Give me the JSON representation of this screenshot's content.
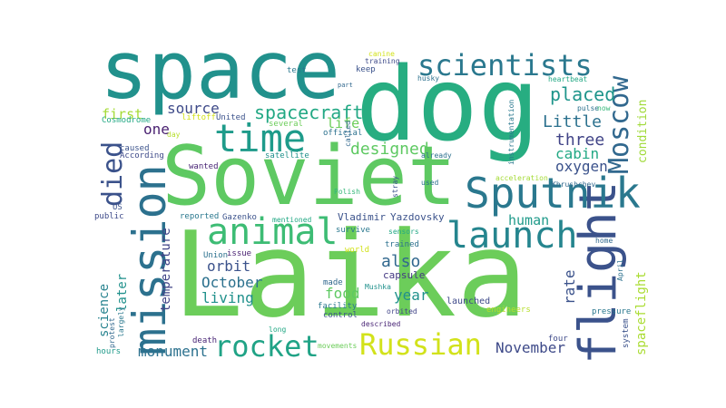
{
  "word_cloud": {
    "palette": {
      "dark_purple": "#440154",
      "indigo": "#3b528b",
      "slate_blue": "#31688e",
      "teal": "#21908d",
      "green": "#35b779",
      "lime": "#5ec962",
      "yellow_green": "#90d743",
      "yellow": "#cddc39"
    },
    "words": [
      {
        "id": "laika",
        "text": "Laika",
        "color": "#6ccd5a"
      },
      {
        "id": "dog",
        "text": "dog",
        "color": "#27ad81"
      },
      {
        "id": "soviet",
        "text": "Soviet",
        "color": "#5ec962"
      },
      {
        "id": "space",
        "text": "space",
        "color": "#21918c"
      },
      {
        "id": "mission",
        "text": "mission",
        "color": "#2c718e"
      },
      {
        "id": "flight",
        "text": "flight",
        "color": "#3b528b"
      },
      {
        "id": "sputnik",
        "text": "Sputnik",
        "color": "#2a788e"
      },
      {
        "id": "launch",
        "text": "launch",
        "color": "#25858e"
      },
      {
        "id": "animal",
        "text": "animal",
        "color": "#3dbc74"
      },
      {
        "id": "time",
        "text": "time",
        "color": "#1e9b8a"
      },
      {
        "id": "scientists",
        "text": "scientists",
        "color": "#2a788e"
      },
      {
        "id": "russian",
        "text": "Russian",
        "color": "#d2e21b"
      },
      {
        "id": "rocket",
        "text": "rocket",
        "color": "#20a386"
      },
      {
        "id": "moscow",
        "text": "Moscow",
        "color": "#31688e"
      },
      {
        "id": "died",
        "text": "died",
        "color": "#3b528b"
      },
      {
        "id": "spacecraft",
        "text": "spacecraft",
        "color": "#22a884"
      },
      {
        "id": "placed",
        "text": "placed",
        "color": "#1f958b"
      },
      {
        "id": "designed",
        "text": "designed",
        "color": "#5ec962"
      },
      {
        "id": "little",
        "text": "Little",
        "color": "#2c718e"
      },
      {
        "id": "three",
        "text": "three",
        "color": "#414487"
      },
      {
        "id": "cabin",
        "text": "cabin",
        "color": "#22a884"
      },
      {
        "id": "oxygen",
        "text": "oxygen",
        "color": "#3b528b"
      },
      {
        "id": "source",
        "text": "source",
        "color": "#3e4a89"
      },
      {
        "id": "one",
        "text": "one",
        "color": "#481f70"
      },
      {
        "id": "first",
        "text": "first",
        "color": "#a5db36"
      },
      {
        "id": "life",
        "text": "life",
        "color": "#6ccd5a"
      },
      {
        "id": "human",
        "text": "human",
        "color": "#1f9a8a"
      },
      {
        "id": "also",
        "text": "also",
        "color": "#31688e"
      },
      {
        "id": "orbit",
        "text": "orbit",
        "color": "#3b528b"
      },
      {
        "id": "october",
        "text": "October",
        "color": "#2c718e"
      },
      {
        "id": "living",
        "text": "living",
        "color": "#21918c"
      },
      {
        "id": "food",
        "text": "food",
        "color": "#5ec962"
      },
      {
        "id": "year",
        "text": "year",
        "color": "#21918c"
      },
      {
        "id": "rate",
        "text": "rate",
        "color": "#3b528b"
      },
      {
        "id": "november",
        "text": "November",
        "color": "#3e4a89"
      },
      {
        "id": "monument",
        "text": "monument",
        "color": "#2c718e"
      },
      {
        "id": "later",
        "text": "later",
        "color": "#21918c"
      },
      {
        "id": "science",
        "text": "science",
        "color": "#26828e"
      },
      {
        "id": "temperature",
        "text": "temperature",
        "color": "#414487"
      },
      {
        "id": "condition",
        "text": "condition",
        "color": "#a0da39"
      },
      {
        "id": "spaceflight",
        "text": "spaceflight",
        "color": "#aadc32"
      },
      {
        "id": "vladimir",
        "text": "Vladimir",
        "color": "#3b528b"
      },
      {
        "id": "yazdovsky",
        "text": "Yazdovsky",
        "color": "#3b528b"
      },
      {
        "id": "capsule",
        "text": "capsule",
        "color": "#443983"
      },
      {
        "id": "launched",
        "text": "launched",
        "color": "#3e4a89"
      },
      {
        "id": "engineers",
        "text": "engineers",
        "color": "#b5de2b"
      },
      {
        "id": "cosmodrome",
        "text": "Cosmodrome",
        "color": "#22a884"
      },
      {
        "id": "liftoff",
        "text": "liftoff",
        "color": "#d2e21b"
      },
      {
        "id": "united",
        "text": "United",
        "color": "#3b528b"
      },
      {
        "id": "several",
        "text": "several",
        "color": "#6ccd5a"
      },
      {
        "id": "official",
        "text": "official",
        "color": "#2c718e"
      },
      {
        "id": "according",
        "text": "According",
        "color": "#3e4a89"
      },
      {
        "id": "day",
        "text": "day",
        "color": "#b5de2b"
      },
      {
        "id": "satellite",
        "text": "satellite",
        "color": "#21918c"
      },
      {
        "id": "caused",
        "text": "caused",
        "color": "#3b528b"
      },
      {
        "id": "wanted",
        "text": "wanted",
        "color": "#482475"
      },
      {
        "id": "us",
        "text": "US",
        "color": "#3b528b"
      },
      {
        "id": "public",
        "text": "public",
        "color": "#3e4a89"
      },
      {
        "id": "reported",
        "text": "reported",
        "color": "#2a788e"
      },
      {
        "id": "gazenko",
        "text": "Gazenko",
        "color": "#3b528b"
      },
      {
        "id": "mentioned",
        "text": "mentioned",
        "color": "#22a884"
      },
      {
        "id": "survive",
        "text": "survive",
        "color": "#2a788e"
      },
      {
        "id": "sensors",
        "text": "sensors",
        "color": "#22a884"
      },
      {
        "id": "issue",
        "text": "issue",
        "color": "#481f70"
      },
      {
        "id": "union",
        "text": "Union",
        "color": "#2c718e"
      },
      {
        "id": "world",
        "text": "world",
        "color": "#d2e21b"
      },
      {
        "id": "trained",
        "text": "trained",
        "color": "#2c718e"
      },
      {
        "id": "made",
        "text": "made",
        "color": "#31688e"
      },
      {
        "id": "muskka",
        "text": "Mushka",
        "color": "#21918c"
      },
      {
        "id": "facility",
        "text": "facility",
        "color": "#2a788e"
      },
      {
        "id": "control",
        "text": "control",
        "color": "#3b528b"
      },
      {
        "id": "orbited",
        "text": "orbited",
        "color": "#414487"
      },
      {
        "id": "described",
        "text": "described",
        "color": "#482475"
      },
      {
        "id": "long",
        "text": "long",
        "color": "#22a884"
      },
      {
        "id": "death",
        "text": "death",
        "color": "#482475"
      },
      {
        "id": "movements",
        "text": "movements",
        "color": "#6ccd5a"
      },
      {
        "id": "four",
        "text": "four",
        "color": "#3e4a89"
      },
      {
        "id": "hours",
        "text": "hours",
        "color": "#1f9a8a"
      },
      {
        "id": "protest",
        "text": "protest",
        "color": "#31688e"
      },
      {
        "id": "largely",
        "text": "largely",
        "color": "#2a788e"
      },
      {
        "id": "canine",
        "text": "canine",
        "color": "#d2e21b"
      },
      {
        "id": "training",
        "text": "training",
        "color": "#3e4a89"
      },
      {
        "id": "husky",
        "text": "husky",
        "color": "#2c718e"
      },
      {
        "id": "test",
        "text": "test",
        "color": "#2a788e"
      },
      {
        "id": "keep",
        "text": "keep",
        "color": "#3b528b"
      },
      {
        "id": "part",
        "text": "part",
        "color": "#31688e"
      },
      {
        "id": "heartbeat",
        "text": "heartbeat",
        "color": "#22a884"
      },
      {
        "id": "pulse",
        "text": "pulse",
        "color": "#2c718e"
      },
      {
        "id": "now",
        "text": "now",
        "color": "#35b779"
      },
      {
        "id": "instrumentation",
        "text": "instrumentation",
        "color": "#2a788e"
      },
      {
        "id": "called",
        "text": "called",
        "color": "#31688e"
      },
      {
        "id": "already",
        "text": "already",
        "color": "#2c718e"
      },
      {
        "id": "acceleration",
        "text": "acceleration",
        "color": "#a5db36"
      },
      {
        "id": "khrushchev",
        "text": "Khrushchev",
        "color": "#31688e"
      },
      {
        "id": "used",
        "text": "used",
        "color": "#2c718e"
      },
      {
        "id": "polish",
        "text": "Polish",
        "color": "#35b779"
      },
      {
        "id": "stray",
        "text": "stray",
        "color": "#3b528b"
      },
      {
        "id": "home",
        "text": "home",
        "color": "#31688e"
      },
      {
        "id": "pressure",
        "text": "pressure",
        "color": "#2a788e"
      },
      {
        "id": "system",
        "text": "system",
        "color": "#3b528b"
      },
      {
        "id": "april",
        "text": "April",
        "color": "#2c718e"
      }
    ]
  }
}
